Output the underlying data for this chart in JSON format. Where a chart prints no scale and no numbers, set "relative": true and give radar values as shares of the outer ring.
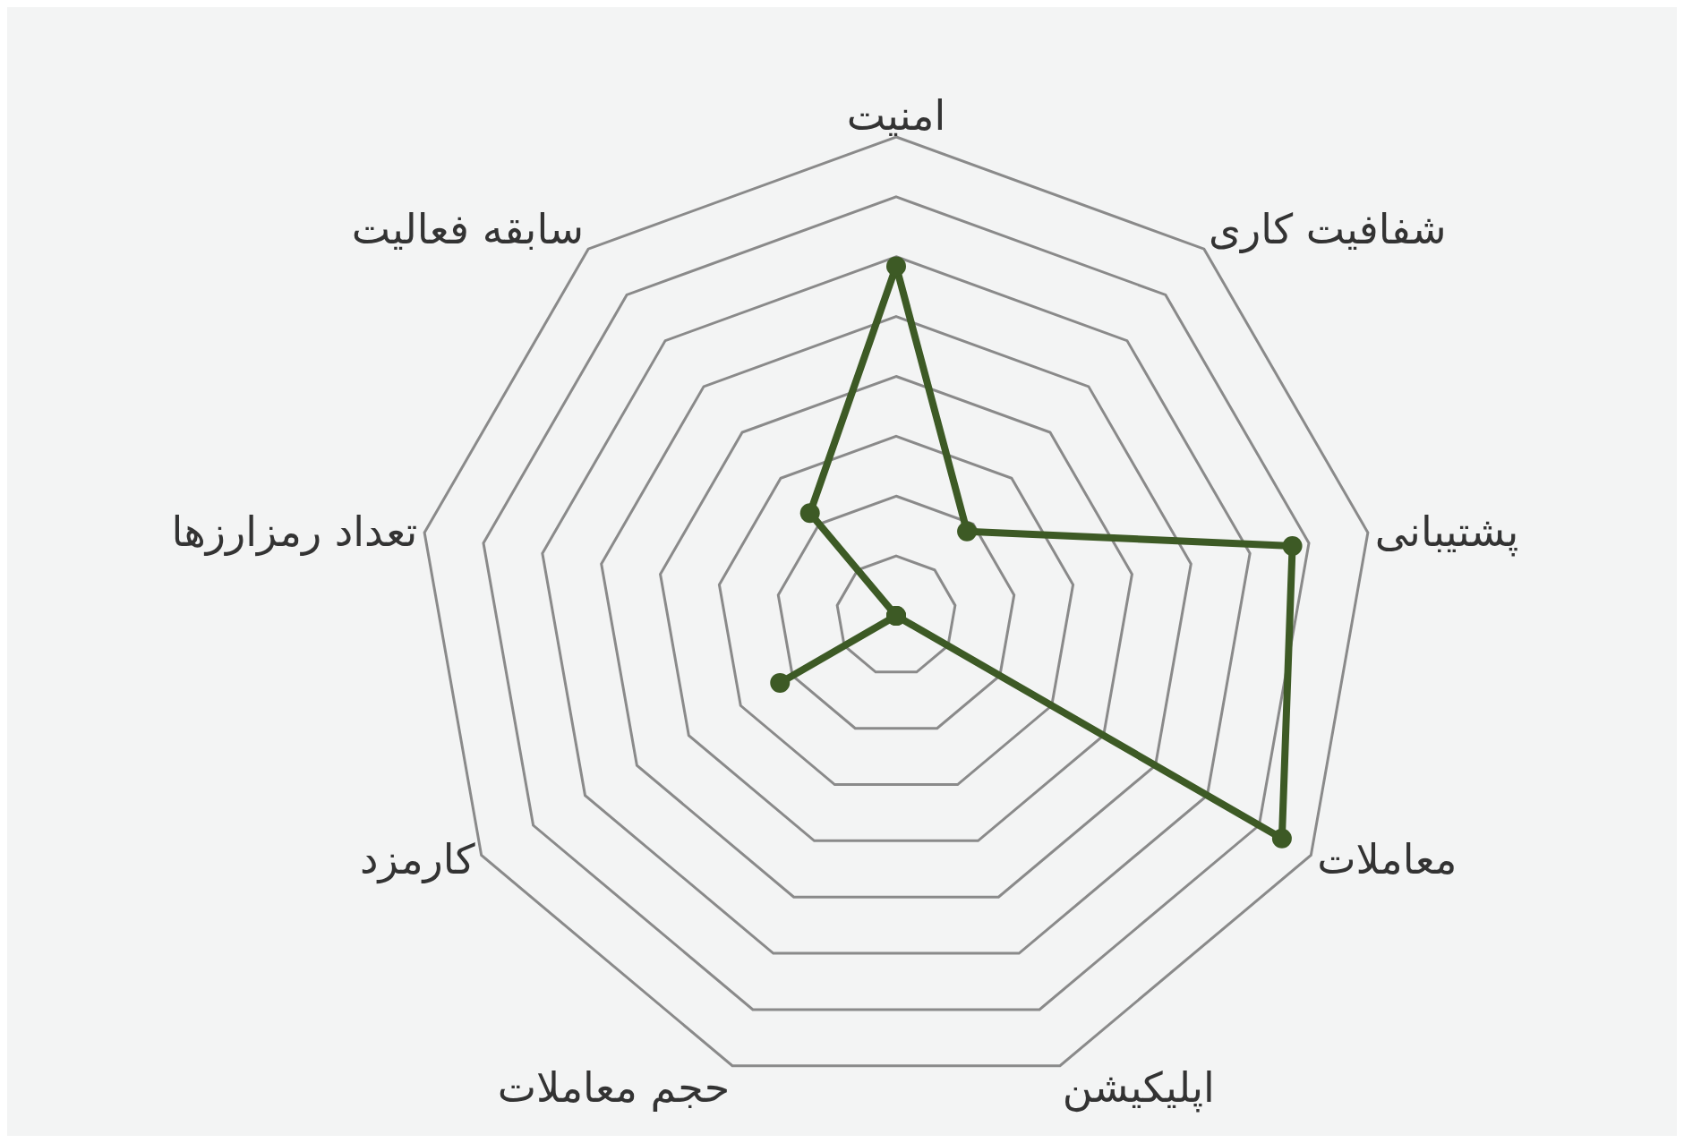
{
  "chart_data": {
    "type": "radar",
    "relative": true,
    "grid": true,
    "marker": "circle",
    "line_style": "solid",
    "categories": [
      "امنیت",
      "شفافیت کاری",
      "پشتیبانی",
      "معاملات",
      "اپلیکیشن",
      "حجم معاملات",
      "کارمزد",
      "تعداد رمزارزها",
      "سابقه فعالیت"
    ],
    "series": [
      {
        "color": "#3d5a25",
        "values": [
          0.73,
          0.23,
          0.84,
          0.93,
          0,
          0,
          0.28,
          0,
          0.28
        ]
      }
    ]
  }
}
